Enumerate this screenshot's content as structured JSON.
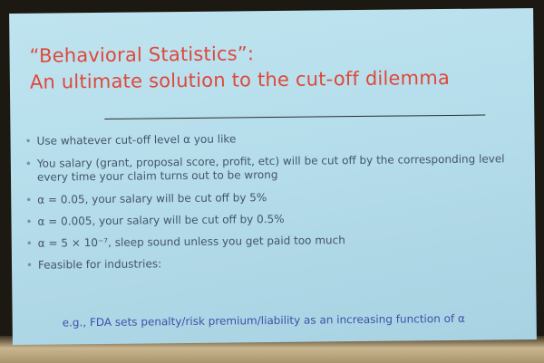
{
  "slide": {
    "title_line_1": "“Behavioral Statistics”:",
    "title_line_2": "An ultimate solution to the cut-off dilemma",
    "bullets": [
      "Use whatever cut-off level α you like",
      "You salary (grant, proposal score, profit, etc) will be cut off by the corresponding level every time your claim turns out to be wrong",
      "α = 0.05,    your salary will be cut off by  5%",
      "α = 0.005,    your salary will be cut off by  0.5%",
      "α = 5 × 10⁻⁷,    sleep sound unless you get paid too much",
      "Feasible for industries:"
    ],
    "example": "e.g.,  FDA sets penalty/risk premium/liability as an increasing function of  α"
  },
  "colors": {
    "slide_background": "#b4dcea",
    "title": "#e0473a",
    "body_text": "#44556a",
    "example_text": "#3f50a8"
  }
}
